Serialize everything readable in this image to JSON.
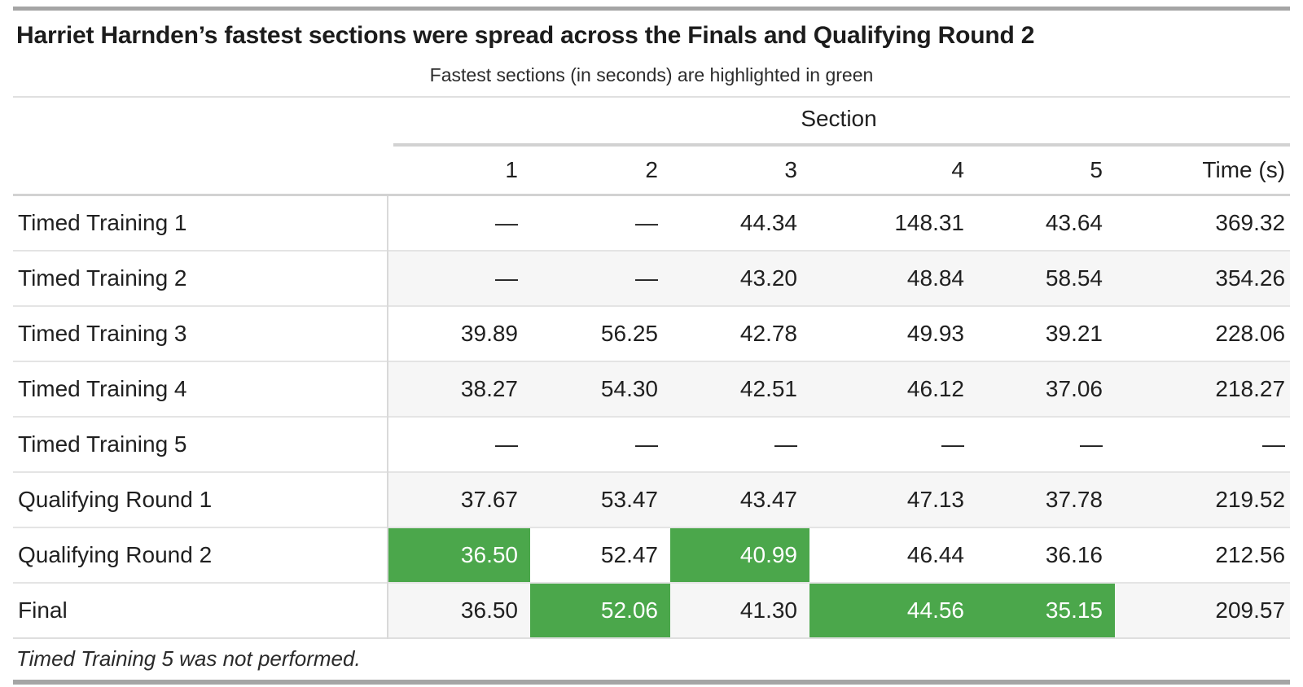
{
  "title": "Harriet Harnden’s fastest sections were spread across the Finals and Qualifying Round 2",
  "subtitle": "Fastest sections (in seconds) are highlighted in green",
  "table": {
    "spanner_label": "Section",
    "columns": [
      "1",
      "2",
      "3",
      "4",
      "5",
      "Time (s)"
    ],
    "rows": [
      {
        "label": "Timed Training 1",
        "values": [
          "—",
          "—",
          "44.34",
          "148.31",
          "43.64",
          "369.32"
        ],
        "highlight": [],
        "banded": false
      },
      {
        "label": "Timed Training 2",
        "values": [
          "—",
          "—",
          "43.20",
          "48.84",
          "58.54",
          "354.26"
        ],
        "highlight": [],
        "banded": true
      },
      {
        "label": "Timed Training 3",
        "values": [
          "39.89",
          "56.25",
          "42.78",
          "49.93",
          "39.21",
          "228.06"
        ],
        "highlight": [],
        "banded": false
      },
      {
        "label": "Timed Training 4",
        "values": [
          "38.27",
          "54.30",
          "42.51",
          "46.12",
          "37.06",
          "218.27"
        ],
        "highlight": [],
        "banded": true
      },
      {
        "label": "Timed Training 5",
        "values": [
          "—",
          "—",
          "—",
          "—",
          "—",
          "—"
        ],
        "highlight": [],
        "banded": false
      },
      {
        "label": "Qualifying Round 1",
        "values": [
          "37.67",
          "53.47",
          "43.47",
          "47.13",
          "37.78",
          "219.52"
        ],
        "highlight": [],
        "banded": true
      },
      {
        "label": "Qualifying Round 2",
        "values": [
          "36.50",
          "52.47",
          "40.99",
          "46.44",
          "36.16",
          "212.56"
        ],
        "highlight": [
          0,
          2
        ],
        "banded": false
      },
      {
        "label": "Final",
        "values": [
          "36.50",
          "52.06",
          "41.30",
          "44.56",
          "35.15",
          "209.57"
        ],
        "highlight": [
          1,
          3,
          4
        ],
        "banded": true
      }
    ],
    "footnote": "Timed Training 5 was not performed."
  },
  "colors": {
    "highlight_green": "#4BA74B"
  },
  "chart_data": {
    "type": "table",
    "title": "Harriet Harnden’s fastest sections were spread across the Finals and Qualifying Round 2",
    "subtitle": "Fastest sections (in seconds) are highlighted in green",
    "column_spanner": "Section",
    "columns": [
      "1",
      "2",
      "3",
      "4",
      "5",
      "Time (s)"
    ],
    "rows": [
      "Timed Training 1",
      "Timed Training 2",
      "Timed Training 3",
      "Timed Training 4",
      "Timed Training 5",
      "Qualifying Round 1",
      "Qualifying Round 2",
      "Final"
    ],
    "values": [
      [
        null,
        null,
        44.34,
        148.31,
        43.64,
        369.32
      ],
      [
        null,
        null,
        43.2,
        48.84,
        58.54,
        354.26
      ],
      [
        39.89,
        56.25,
        42.78,
        49.93,
        39.21,
        228.06
      ],
      [
        38.27,
        54.3,
        42.51,
        46.12,
        37.06,
        218.27
      ],
      [
        null,
        null,
        null,
        null,
        null,
        null
      ],
      [
        37.67,
        53.47,
        43.47,
        47.13,
        37.78,
        219.52
      ],
      [
        36.5,
        52.47,
        40.99,
        46.44,
        36.16,
        212.56
      ],
      [
        36.5,
        52.06,
        41.3,
        44.56,
        35.15,
        209.57
      ]
    ],
    "highlighted_cells": [
      {
        "row": "Qualifying Round 2",
        "section": "1",
        "value": 36.5
      },
      {
        "row": "Qualifying Round 2",
        "section": "3",
        "value": 40.99
      },
      {
        "row": "Final",
        "section": "2",
        "value": 52.06
      },
      {
        "row": "Final",
        "section": "4",
        "value": 44.56
      },
      {
        "row": "Final",
        "section": "5",
        "value": 35.15
      }
    ],
    "footnote": "Timed Training 5 was not performed."
  }
}
